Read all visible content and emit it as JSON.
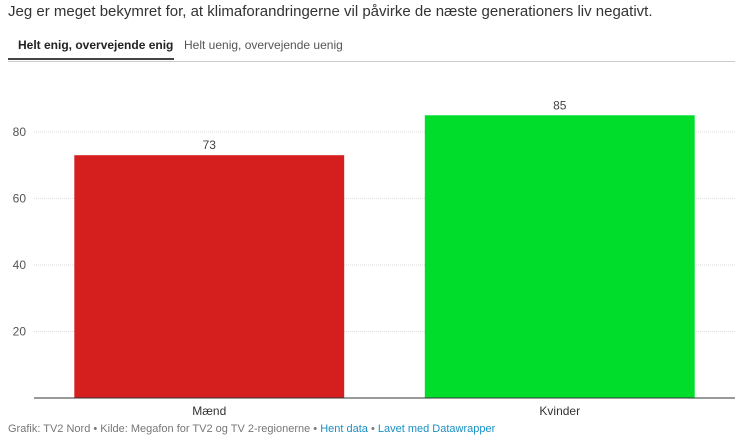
{
  "headline": "Jeg er meget bekymret for, at klimaforandringerne vil påvirke de næste generationers liv negativt.",
  "tabs": [
    {
      "label": "Helt enig, overvejende enig",
      "active": true
    },
    {
      "label": "Helt uenig, overvejende uenig",
      "active": false
    }
  ],
  "footer": {
    "source_text": "Grafik: TV2 Nord • Kilde: Megafon for TV2 og TV 2-regionerne •",
    "separator": "•",
    "data_link": "Hent data",
    "made_with_link": "Lavet med Datawrapper"
  },
  "chart_data": {
    "type": "bar",
    "categories": [
      "Mænd",
      "Kvinder"
    ],
    "values": [
      73,
      85
    ],
    "colors": [
      "#d51f1f",
      "#00dd2b"
    ],
    "ylim": [
      0,
      92
    ],
    "yticks": [
      20,
      40,
      60,
      80
    ],
    "grid": true,
    "title": "",
    "xlabel": "",
    "ylabel": ""
  }
}
